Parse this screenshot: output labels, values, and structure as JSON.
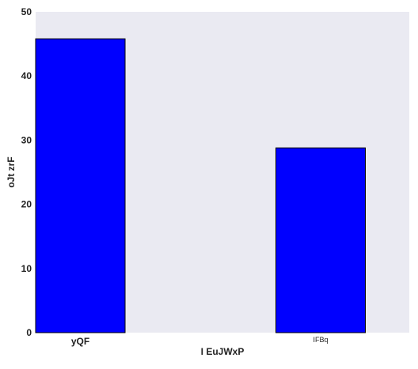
{
  "chart_data": {
    "type": "bar",
    "categories": [
      "yQF",
      "IFBq"
    ],
    "category_label_styles": [
      "bold",
      "small"
    ],
    "values": [
      45.8,
      28.8
    ],
    "xlabel": "I EuJWxP",
    "ylabel": "oJt zrF",
    "ylim": [
      0,
      50
    ],
    "yticks": [
      "0",
      "10",
      "20",
      "30",
      "40",
      "50"
    ],
    "grid": false,
    "legend": "none",
    "colors": {
      "bar": "#0000ff",
      "bar_edge": "#000000",
      "plot_background": "#eaeaf2",
      "text": "#222222"
    }
  }
}
